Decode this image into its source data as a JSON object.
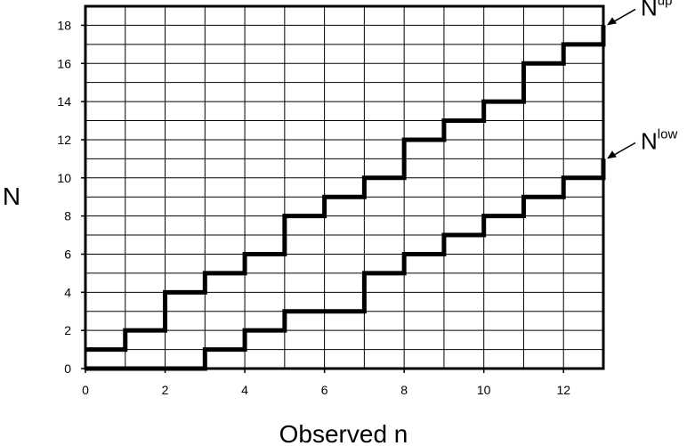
{
  "chart_data": {
    "type": "line",
    "title": "",
    "xlabel": "Observed n",
    "ylabel": "N",
    "xlim": [
      0,
      13
    ],
    "ylim": [
      0,
      19
    ],
    "x_ticks": [
      0,
      2,
      4,
      6,
      8,
      10,
      12
    ],
    "y_ticks": [
      0,
      2,
      4,
      6,
      8,
      10,
      12,
      14,
      16,
      18
    ],
    "grid": true,
    "grid_x_step": 1,
    "grid_y_step": 1,
    "step": "post",
    "series": [
      {
        "name": "N^up",
        "label_base": "N",
        "label_sup": "up",
        "x": [
          0,
          1,
          2,
          3,
          4,
          5,
          6,
          7,
          8,
          9,
          10,
          11,
          12,
          13
        ],
        "values": [
          1,
          2,
          4,
          5,
          6,
          8,
          9,
          10,
          12,
          13,
          14,
          16,
          17,
          18
        ],
        "color": "#000000"
      },
      {
        "name": "N^low",
        "label_base": "N",
        "label_sup": "low",
        "x": [
          0,
          1,
          2,
          3,
          4,
          5,
          6,
          7,
          8,
          9,
          10,
          11,
          12,
          13
        ],
        "values": [
          0,
          0,
          0,
          1,
          2,
          3,
          3,
          5,
          6,
          7,
          8,
          9,
          10,
          11
        ],
        "color": "#000000"
      }
    ]
  }
}
